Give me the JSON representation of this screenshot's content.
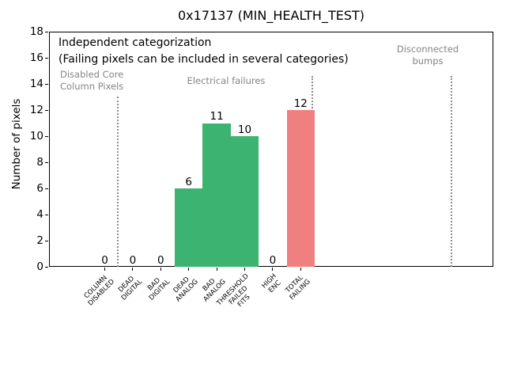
{
  "chart_data": {
    "type": "bar",
    "title": "0x17137 (MIN_HEALTH_TEST)",
    "ylabel": "Number of pixels",
    "xlabel": "",
    "ylim": [
      0,
      18
    ],
    "ytick_step": 2,
    "grid": false,
    "legend": null,
    "categories": [
      "COLUMN\nDISABLED",
      "DEAD\nDIGITAL",
      "BAD\nDIGITAL",
      "DEAD\nANALOG",
      "BAD\nANALOG",
      "THRESHOLD\nFAILED\nFITS",
      "HIGH\nENC",
      "TOTAL\nFAILING"
    ],
    "values": [
      0,
      0,
      0,
      6,
      11,
      10,
      0,
      12
    ],
    "bar_colors": [
      "#3CB371",
      "#3CB371",
      "#3CB371",
      "#3CB371",
      "#3CB371",
      "#3CB371",
      "#3CB371",
      "#F08080"
    ],
    "annotations": {
      "line1": "Independent categorization",
      "line2": "(Failing pixels can be included in several categories)"
    },
    "sections": [
      {
        "label": "Disabled Core\nColumn Pixels"
      },
      {
        "label": "Electrical failures"
      },
      {
        "label": "Disconnected\nbumps"
      }
    ],
    "colors": {
      "category_green": "#3CB371",
      "total_failing_red": "#F08080",
      "section_text_gray": "#848484",
      "divider_gray": "#8c8c8c"
    }
  }
}
